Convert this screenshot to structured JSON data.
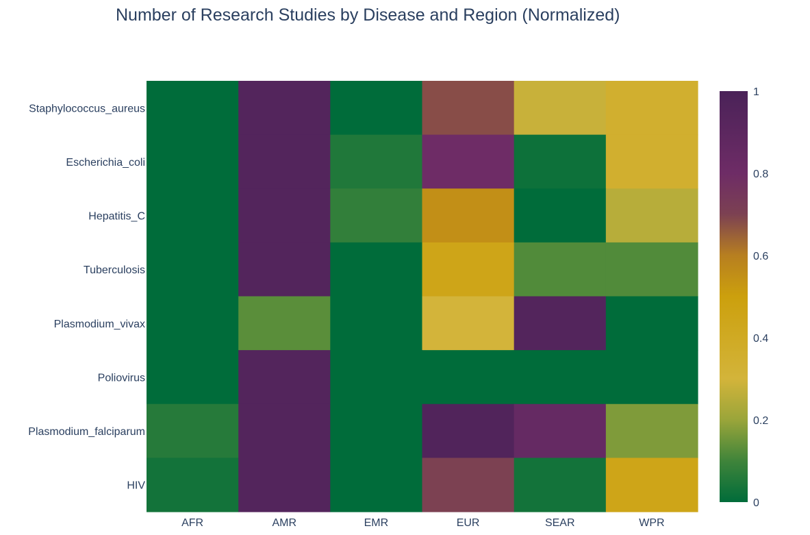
{
  "chart_data": {
    "type": "heatmap",
    "title": "Number of Research Studies by Disease and Region (Normalized)",
    "x": [
      "AFR",
      "AMR",
      "EMR",
      "EUR",
      "SEAR",
      "WPR"
    ],
    "y": [
      "Staphylococcus_aureus",
      "Escherichia_coli",
      "Hepatitis_C",
      "Tuberculosis",
      "Plasmodium_vivax",
      "Poliovirus",
      "Plasmodium_falciparum",
      "HIV"
    ],
    "z": [
      [
        0.0,
        0.95,
        0.0,
        0.68,
        0.28,
        0.35
      ],
      [
        0.0,
        0.95,
        0.05,
        0.8,
        0.02,
        0.35
      ],
      [
        0.0,
        0.95,
        0.08,
        0.55,
        0.0,
        0.25
      ],
      [
        0.0,
        0.95,
        0.0,
        0.45,
        0.12,
        0.12
      ],
      [
        0.0,
        0.13,
        0.0,
        0.3,
        0.95,
        0.0
      ],
      [
        0.0,
        0.95,
        0.0,
        0.0,
        0.0,
        0.0
      ],
      [
        0.06,
        0.95,
        0.0,
        0.96,
        0.85,
        0.17
      ],
      [
        0.03,
        0.95,
        0.0,
        0.7,
        0.03,
        0.45
      ]
    ],
    "colorscale": [
      [
        0.0,
        "#006c3a"
      ],
      [
        0.1,
        "#3f843a"
      ],
      [
        0.2,
        "#9aa53a"
      ],
      [
        0.3,
        "#d3b43a"
      ],
      [
        0.5,
        "#cca00d"
      ],
      [
        0.6,
        "#b77f20"
      ],
      [
        0.7,
        "#7c4152"
      ],
      [
        0.8,
        "#6e2c66"
      ],
      [
        1.0,
        "#4a2258"
      ]
    ],
    "colorbar": {
      "range": [
        0,
        1
      ],
      "ticks": [
        "0",
        "0.2",
        "0.4",
        "0.6",
        "0.8",
        "1"
      ]
    }
  }
}
